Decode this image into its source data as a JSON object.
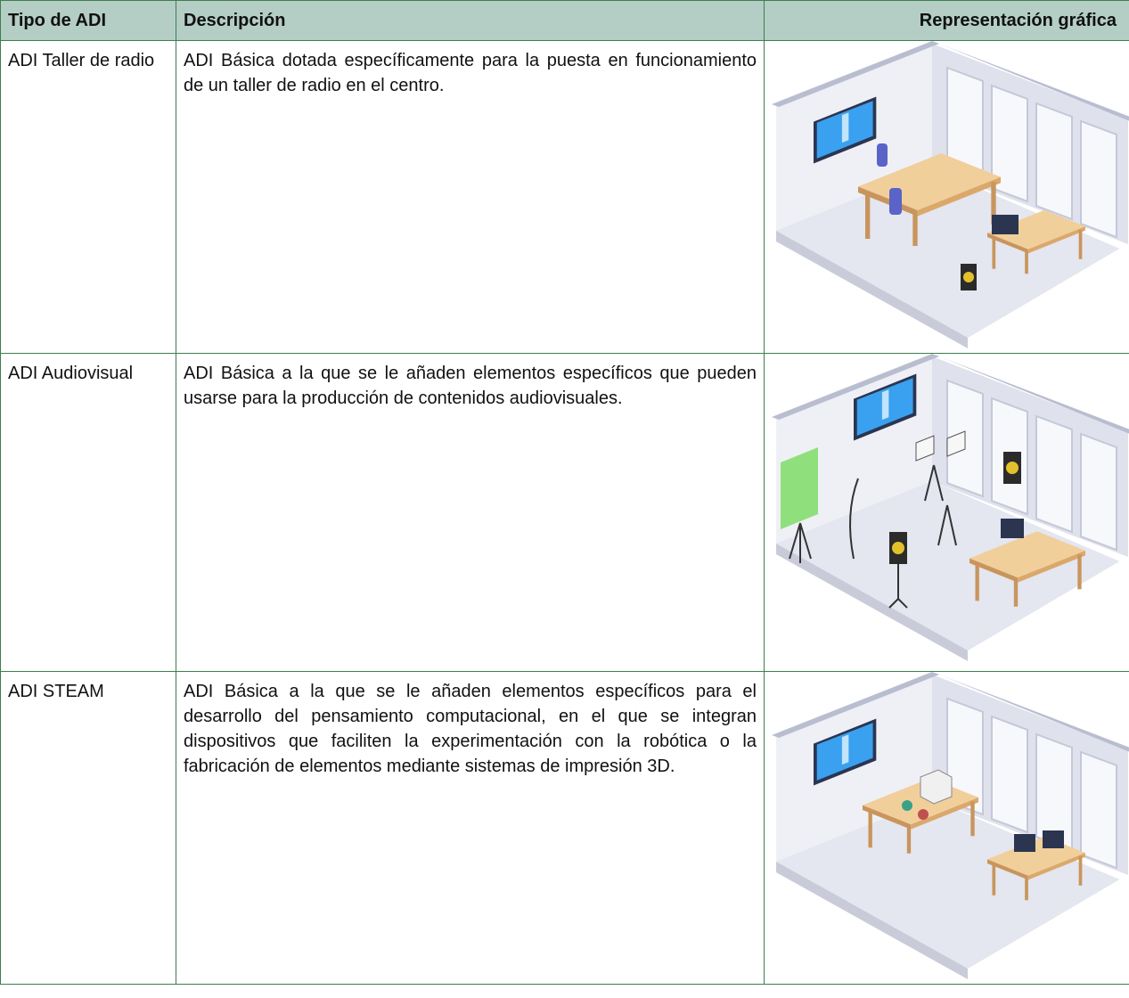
{
  "table": {
    "header": [
      "Tipo de ADI",
      "Descripción",
      "Representación gráfica"
    ],
    "rows": [
      [
        "ADI Taller de radio",
        "ADI Básica dotada específicamente para la puesta en funcionamiento de un taller de radio en el centro."
      ],
      [
        "ADI Audiovisual",
        "ADI Básica a la que se le añaden elementos específicos que pueden usarse para la producción de contenidos audiovisuales."
      ],
      [
        "ADI STEAM",
        "ADI Básica a la que se le añaden elementos específicos para el desarrollo del pensamiento computacional, en el que se integran dispositivos que faciliten la experimentación con la robótica o la fabricación de elementos mediante sistemas de impresión 3D."
      ]
    ]
  }
}
